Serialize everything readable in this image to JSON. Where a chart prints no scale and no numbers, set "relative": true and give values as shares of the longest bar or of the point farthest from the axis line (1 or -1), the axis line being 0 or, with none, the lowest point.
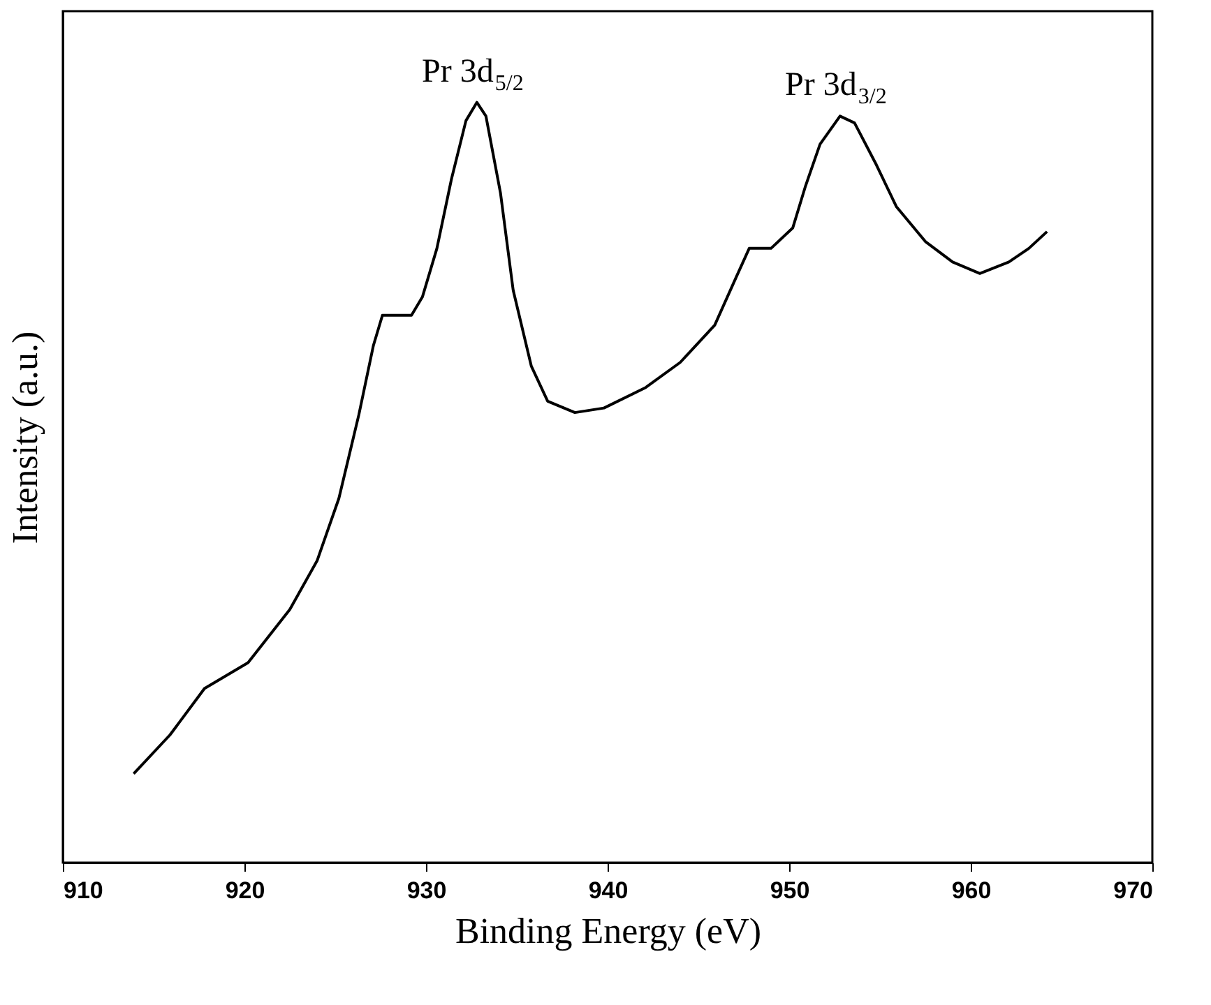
{
  "chart_data": {
    "type": "line",
    "xlabel": "Binding Energy (eV)",
    "ylabel": "Intensity (a.u.)",
    "relative": true,
    "xlim": [
      910,
      970
    ],
    "xticks": [
      910,
      920,
      930,
      940,
      950,
      960,
      970
    ],
    "grid": false,
    "marker": "none",
    "line_style": "solid",
    "tick_labels": "x",
    "x": [
      913.9,
      915.9,
      917.8,
      920.2,
      922.5,
      924.0,
      925.2,
      926.3,
      927.1,
      927.6,
      928.4,
      929.2,
      929.8,
      930.6,
      931.4,
      932.2,
      932.8,
      933.3,
      934.1,
      934.8,
      935.8,
      936.7,
      938.2,
      939.8,
      942.1,
      944.0,
      945.9,
      947.1,
      947.8,
      949.0,
      950.2,
      950.9,
      951.7,
      952.8,
      953.6,
      954.8,
      955.9,
      957.5,
      959.0,
      960.5,
      962.1,
      963.2,
      964.2
    ],
    "series": [
      {
        "color": "#000000",
        "values": [
          0.117,
          0.168,
          0.229,
          0.263,
          0.333,
          0.397,
          0.479,
          0.589,
          0.68,
          0.72,
          0.72,
          0.72,
          0.744,
          0.808,
          0.899,
          0.976,
          1.0,
          0.982,
          0.881,
          0.753,
          0.653,
          0.607,
          0.592,
          0.598,
          0.625,
          0.658,
          0.707,
          0.771,
          0.808,
          0.808,
          0.835,
          0.89,
          0.945,
          0.982,
          0.973,
          0.918,
          0.863,
          0.817,
          0.79,
          0.775,
          0.79,
          0.808,
          0.83
        ]
      }
    ],
    "annotations": [
      {
        "text": "Pr 3d$_{5/2}$",
        "x": 932.8,
        "y": 1.0
      },
      {
        "text": "Pr 3d$_{3/2}$",
        "x": 952.8,
        "y": 0.982
      }
    ]
  }
}
